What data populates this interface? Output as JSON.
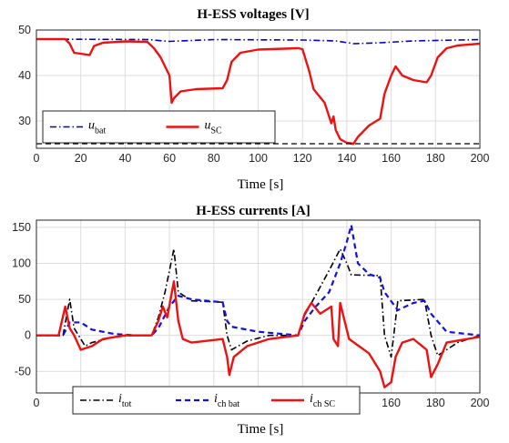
{
  "chart_data": [
    {
      "type": "line",
      "title": "H-ESS voltages [V]",
      "xlabel": "Time [s]",
      "ylabel": "",
      "xlim": [
        0,
        200
      ],
      "ylim": [
        24,
        50
      ],
      "xticks": [
        "0",
        "20",
        "40",
        "60",
        "80",
        "100",
        "120",
        "140",
        "160",
        "180",
        "200"
      ],
      "yticks": [
        "30",
        "40",
        "50"
      ],
      "grid": true,
      "legend_location": "bottom-left",
      "series": [
        {
          "name": "u_bat",
          "label_main": "u",
          "label_sub": "bat",
          "color": "#0000cc",
          "style": "dashdot",
          "points": [
            [
              0,
              48
            ],
            [
              50,
              47.9
            ],
            [
              60,
              47.5
            ],
            [
              80,
              47.9
            ],
            [
              120,
              47.8
            ],
            [
              135,
              47.6
            ],
            [
              143,
              47
            ],
            [
              155,
              47.2
            ],
            [
              170,
              47.6
            ],
            [
              200,
              47.9
            ]
          ]
        },
        {
          "name": "u_SC",
          "label_main": "u",
          "label_sub": "SC",
          "color": "#ee1111",
          "style": "solid",
          "points": [
            [
              0,
              48
            ],
            [
              13,
              48
            ],
            [
              15,
              47
            ],
            [
              17,
              45
            ],
            [
              24,
              44.5
            ],
            [
              26,
              46.5
            ],
            [
              30,
              47.2
            ],
            [
              40,
              47.5
            ],
            [
              50,
              47.4
            ],
            [
              53,
              46
            ],
            [
              56,
              44
            ],
            [
              60,
              40
            ],
            [
              61,
              34
            ],
            [
              62,
              35
            ],
            [
              65,
              36.5
            ],
            [
              72,
              37
            ],
            [
              84,
              37.2
            ],
            [
              86,
              39
            ],
            [
              88,
              43
            ],
            [
              92,
              45
            ],
            [
              100,
              45.7
            ],
            [
              118,
              46
            ],
            [
              120,
              45.8
            ],
            [
              123,
              41
            ],
            [
              125,
              37
            ],
            [
              130,
              34
            ],
            [
              133,
              29.5
            ],
            [
              134,
              31
            ],
            [
              135,
              28
            ],
            [
              137,
              26
            ],
            [
              140,
              25.2
            ],
            [
              143,
              25
            ],
            [
              145,
              26.5
            ],
            [
              150,
              29
            ],
            [
              155,
              30.5
            ],
            [
              157,
              36
            ],
            [
              160,
              40
            ],
            [
              162,
              42
            ],
            [
              165,
              40
            ],
            [
              170,
              39
            ],
            [
              176,
              38.5
            ],
            [
              178,
              40
            ],
            [
              181,
              44
            ],
            [
              185,
              46
            ],
            [
              190,
              46.6
            ],
            [
              200,
              47
            ]
          ]
        },
        {
          "name": "limit",
          "label_main": "",
          "label_sub": "",
          "color": "#000000",
          "style": "dashed",
          "points": [
            [
              0,
              25
            ],
            [
              200,
              25
            ]
          ]
        }
      ]
    },
    {
      "type": "line",
      "title": "H-ESS currents [A]",
      "xlabel": "Time [s]",
      "ylabel": "",
      "xlim": [
        0,
        200
      ],
      "ylim": [
        -80,
        160
      ],
      "xticks": [
        "0",
        "20",
        "40",
        "60",
        "80",
        "100",
        "120",
        "140",
        "160",
        "180",
        "200"
      ],
      "yticks": [
        "-50",
        "0",
        "50",
        "100",
        "150"
      ],
      "grid": true,
      "legend_location": "bottom-left",
      "series": [
        {
          "name": "i_tot",
          "label_main": "i",
          "label_sub": "tot",
          "color": "#000000",
          "style": "dashdot",
          "points": [
            [
              0,
              0
            ],
            [
              12,
              0
            ],
            [
              15,
              50
            ],
            [
              17,
              10
            ],
            [
              22,
              -15
            ],
            [
              25,
              -10
            ],
            [
              35,
              -2
            ],
            [
              45,
              0
            ],
            [
              52,
              0
            ],
            [
              55,
              25
            ],
            [
              58,
              60
            ],
            [
              62,
              120
            ],
            [
              64,
              60
            ],
            [
              70,
              48
            ],
            [
              84,
              46
            ],
            [
              86,
              0
            ],
            [
              88,
              -20
            ],
            [
              95,
              -8
            ],
            [
              105,
              0
            ],
            [
              118,
              0
            ],
            [
              121,
              28
            ],
            [
              126,
              56
            ],
            [
              132,
              90
            ],
            [
              137,
              120
            ],
            [
              140,
              100
            ],
            [
              142,
              84
            ],
            [
              155,
              83
            ],
            [
              157,
              0
            ],
            [
              160,
              -30
            ],
            [
              163,
              48
            ],
            [
              175,
              50
            ],
            [
              178,
              0
            ],
            [
              181,
              -28
            ],
            [
              190,
              -10
            ],
            [
              200,
              0
            ]
          ]
        },
        {
          "name": "i_ch_bat",
          "label_main": "i",
          "label_sub": "ch bat",
          "color": "#1111dd",
          "style": "dashed",
          "points": [
            [
              0,
              0
            ],
            [
              12,
              0
            ],
            [
              15,
              18
            ],
            [
              20,
              18
            ],
            [
              25,
              8
            ],
            [
              35,
              2
            ],
            [
              45,
              0
            ],
            [
              52,
              0
            ],
            [
              55,
              10
            ],
            [
              60,
              40
            ],
            [
              64,
              55
            ],
            [
              70,
              50
            ],
            [
              84,
              46
            ],
            [
              86,
              20
            ],
            [
              88,
              12
            ],
            [
              100,
              5
            ],
            [
              118,
              0
            ],
            [
              121,
              20
            ],
            [
              126,
              40
            ],
            [
              132,
              60
            ],
            [
              137,
              100
            ],
            [
              140,
              130
            ],
            [
              142,
              153
            ],
            [
              145,
              100
            ],
            [
              150,
              85
            ],
            [
              155,
              80
            ],
            [
              157,
              60
            ],
            [
              163,
              35
            ],
            [
              170,
              45
            ],
            [
              175,
              48
            ],
            [
              178,
              30
            ],
            [
              185,
              5
            ],
            [
              200,
              0
            ]
          ]
        },
        {
          "name": "i_ch_SC",
          "label_main": "i",
          "label_sub": "ch SC",
          "color": "#ee1111",
          "style": "solid",
          "points": [
            [
              0,
              0
            ],
            [
              10,
              0
            ],
            [
              13,
              40
            ],
            [
              15,
              10
            ],
            [
              17,
              0
            ],
            [
              20,
              -20
            ],
            [
              25,
              -15
            ],
            [
              30,
              -5
            ],
            [
              40,
              0
            ],
            [
              52,
              0
            ],
            [
              55,
              20
            ],
            [
              57,
              40
            ],
            [
              59,
              25
            ],
            [
              62,
              75
            ],
            [
              64,
              20
            ],
            [
              66,
              -5
            ],
            [
              70,
              -10
            ],
            [
              84,
              -5
            ],
            [
              86,
              -30
            ],
            [
              87,
              -55
            ],
            [
              89,
              -30
            ],
            [
              95,
              -15
            ],
            [
              105,
              -5
            ],
            [
              118,
              0
            ],
            [
              121,
              30
            ],
            [
              124,
              45
            ],
            [
              128,
              30
            ],
            [
              133,
              40
            ],
            [
              134,
              -5
            ],
            [
              136,
              -15
            ],
            [
              137,
              45
            ],
            [
              139,
              20
            ],
            [
              141,
              -5
            ],
            [
              150,
              -25
            ],
            [
              155,
              -50
            ],
            [
              157,
              -72
            ],
            [
              160,
              -65
            ],
            [
              162,
              -30
            ],
            [
              165,
              -10
            ],
            [
              170,
              -5
            ],
            [
              176,
              -20
            ],
            [
              178,
              -58
            ],
            [
              181,
              -40
            ],
            [
              185,
              -10
            ],
            [
              200,
              -2
            ]
          ]
        }
      ]
    }
  ]
}
